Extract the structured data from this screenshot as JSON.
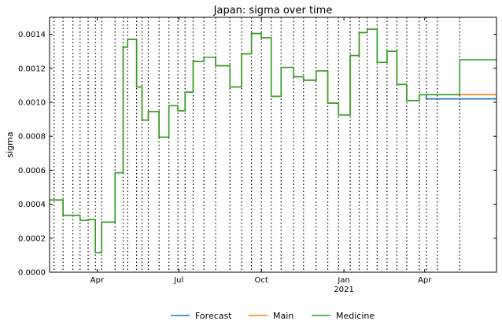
{
  "chart_data": {
    "type": "line",
    "title": "Japan: sigma over time",
    "xlabel": "",
    "ylabel": "sigma",
    "ylim": [
      0,
      0.0015
    ],
    "xlim": [
      "2020-02-08",
      "2021-06-20"
    ],
    "y_ticks": [
      "0.0000",
      "0.0002",
      "0.0004",
      "0.0006",
      "0.0008",
      "0.0010",
      "0.0012",
      "0.0014"
    ],
    "x_ticks": [
      {
        "label": "Apr",
        "sub": "",
        "date": "2020-04-01"
      },
      {
        "label": "Jul",
        "sub": "",
        "date": "2020-07-01"
      },
      {
        "label": "Oct",
        "sub": "",
        "date": "2020-10-01"
      },
      {
        "label": "Jan",
        "sub": "2021",
        "date": "2021-01-01"
      },
      {
        "label": "Apr",
        "sub": "",
        "date": "2021-04-01"
      }
    ],
    "change_dates": [
      "2020-02-13",
      "2020-02-23",
      "2020-03-05",
      "2020-03-13",
      "2020-03-22",
      "2020-03-30",
      "2020-04-06",
      "2020-04-21",
      "2020-04-30",
      "2020-05-05",
      "2020-05-15",
      "2020-05-21",
      "2020-05-28",
      "2020-06-09",
      "2020-06-20",
      "2020-06-30",
      "2020-07-08",
      "2020-07-17",
      "2020-07-29",
      "2020-08-11",
      "2020-08-27",
      "2020-09-09",
      "2020-09-20",
      "2020-10-01",
      "2020-10-12",
      "2020-10-23",
      "2020-11-06",
      "2020-11-17",
      "2020-12-01",
      "2020-12-14",
      "2020-12-26",
      "2021-01-08",
      "2021-01-18",
      "2021-01-27",
      "2021-02-07",
      "2021-02-18",
      "2021-03-01",
      "2021-03-12",
      "2021-03-26",
      "2021-04-03",
      "2021-04-15",
      "2021-05-10"
    ],
    "series": [
      {
        "name": "Main",
        "color": "#ff7f0e",
        "steps": [
          {
            "date": "2020-02-08",
            "value": 0.000425
          },
          {
            "date": "2020-02-23",
            "value": 0.000335
          },
          {
            "date": "2020-03-13",
            "value": 0.000305
          },
          {
            "date": "2020-03-22",
            "value": 0.00031
          },
          {
            "date": "2020-03-30",
            "value": 0.000115
          },
          {
            "date": "2020-04-06",
            "value": 0.000295
          },
          {
            "date": "2020-04-21",
            "value": 0.000585
          },
          {
            "date": "2020-04-30",
            "value": 0.001325
          },
          {
            "date": "2020-05-05",
            "value": 0.00137
          },
          {
            "date": "2020-05-15",
            "value": 0.00109
          },
          {
            "date": "2020-05-21",
            "value": 0.000895
          },
          {
            "date": "2020-05-28",
            "value": 0.000945
          },
          {
            "date": "2020-06-09",
            "value": 0.000795
          },
          {
            "date": "2020-06-20",
            "value": 0.00098
          },
          {
            "date": "2020-06-30",
            "value": 0.00095
          },
          {
            "date": "2020-07-08",
            "value": 0.00106
          },
          {
            "date": "2020-07-17",
            "value": 0.00124
          },
          {
            "date": "2020-07-29",
            "value": 0.001265
          },
          {
            "date": "2020-08-11",
            "value": 0.001215
          },
          {
            "date": "2020-08-27",
            "value": 0.00109
          },
          {
            "date": "2020-09-09",
            "value": 0.001285
          },
          {
            "date": "2020-09-20",
            "value": 0.001405
          },
          {
            "date": "2020-10-01",
            "value": 0.00138
          },
          {
            "date": "2020-10-12",
            "value": 0.001035
          },
          {
            "date": "2020-10-23",
            "value": 0.001205
          },
          {
            "date": "2020-11-06",
            "value": 0.00115
          },
          {
            "date": "2020-11-17",
            "value": 0.00113
          },
          {
            "date": "2020-12-01",
            "value": 0.001185
          },
          {
            "date": "2020-12-14",
            "value": 0.000995
          },
          {
            "date": "2020-12-26",
            "value": 0.000925
          },
          {
            "date": "2021-01-08",
            "value": 0.001275
          },
          {
            "date": "2021-01-18",
            "value": 0.00141
          },
          {
            "date": "2021-01-27",
            "value": 0.00143
          },
          {
            "date": "2021-02-07",
            "value": 0.001235
          },
          {
            "date": "2021-02-18",
            "value": 0.0013
          },
          {
            "date": "2021-03-01",
            "value": 0.001105
          },
          {
            "date": "2021-03-12",
            "value": 0.00101
          },
          {
            "date": "2021-03-26",
            "value": 0.001045
          },
          {
            "date": "2021-04-03",
            "value": 0.001045
          },
          {
            "date": "2021-06-20",
            "value": 0.001045
          }
        ]
      },
      {
        "name": "Forecast",
        "color": "#1f77b4",
        "steps": [
          {
            "date": "2021-03-26",
            "value": 0.001045
          },
          {
            "date": "2021-04-03",
            "value": 0.00102
          },
          {
            "date": "2021-06-20",
            "value": 0.00102
          }
        ]
      },
      {
        "name": "Medicine",
        "color": "#2ca02c",
        "steps": [
          {
            "date": "2020-02-08",
            "value": 0.000425
          },
          {
            "date": "2020-02-23",
            "value": 0.000335
          },
          {
            "date": "2020-03-13",
            "value": 0.000305
          },
          {
            "date": "2020-03-22",
            "value": 0.00031
          },
          {
            "date": "2020-03-30",
            "value": 0.000115
          },
          {
            "date": "2020-04-06",
            "value": 0.000295
          },
          {
            "date": "2020-04-21",
            "value": 0.000585
          },
          {
            "date": "2020-04-30",
            "value": 0.001325
          },
          {
            "date": "2020-05-05",
            "value": 0.00137
          },
          {
            "date": "2020-05-15",
            "value": 0.00109
          },
          {
            "date": "2020-05-21",
            "value": 0.000895
          },
          {
            "date": "2020-05-28",
            "value": 0.000945
          },
          {
            "date": "2020-06-09",
            "value": 0.000795
          },
          {
            "date": "2020-06-20",
            "value": 0.00098
          },
          {
            "date": "2020-06-30",
            "value": 0.00095
          },
          {
            "date": "2020-07-08",
            "value": 0.00106
          },
          {
            "date": "2020-07-17",
            "value": 0.00124
          },
          {
            "date": "2020-07-29",
            "value": 0.001265
          },
          {
            "date": "2020-08-11",
            "value": 0.001215
          },
          {
            "date": "2020-08-27",
            "value": 0.00109
          },
          {
            "date": "2020-09-09",
            "value": 0.001285
          },
          {
            "date": "2020-09-20",
            "value": 0.001405
          },
          {
            "date": "2020-10-01",
            "value": 0.00138
          },
          {
            "date": "2020-10-12",
            "value": 0.001035
          },
          {
            "date": "2020-10-23",
            "value": 0.001205
          },
          {
            "date": "2020-11-06",
            "value": 0.00115
          },
          {
            "date": "2020-11-17",
            "value": 0.00113
          },
          {
            "date": "2020-12-01",
            "value": 0.001185
          },
          {
            "date": "2020-12-14",
            "value": 0.000995
          },
          {
            "date": "2020-12-26",
            "value": 0.000925
          },
          {
            "date": "2021-01-08",
            "value": 0.001275
          },
          {
            "date": "2021-01-18",
            "value": 0.00141
          },
          {
            "date": "2021-01-27",
            "value": 0.00143
          },
          {
            "date": "2021-02-07",
            "value": 0.001235
          },
          {
            "date": "2021-02-18",
            "value": 0.0013
          },
          {
            "date": "2021-03-01",
            "value": 0.001105
          },
          {
            "date": "2021-03-12",
            "value": 0.00101
          },
          {
            "date": "2021-03-26",
            "value": 0.001045
          },
          {
            "date": "2021-05-10",
            "value": 0.00125
          },
          {
            "date": "2021-06-20",
            "value": 0.00125
          }
        ]
      }
    ],
    "legend": {
      "placement": "bottom-center",
      "entries": [
        {
          "name": "Forecast",
          "color": "#1f77b4"
        },
        {
          "name": "Main",
          "color": "#ff7f0e"
        },
        {
          "name": "Medicine",
          "color": "#2ca02c"
        }
      ]
    },
    "grid": false
  }
}
